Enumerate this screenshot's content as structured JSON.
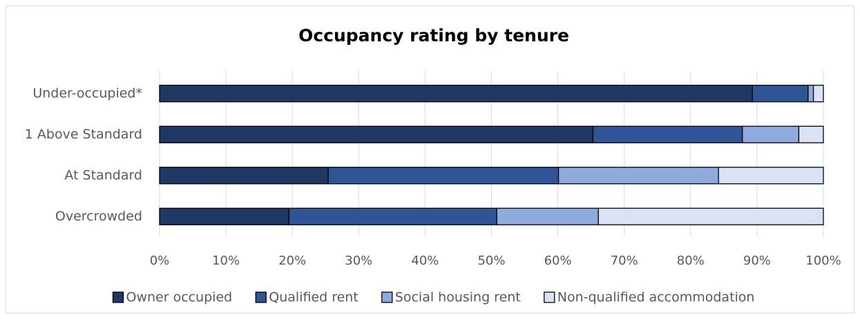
{
  "chart_data": {
    "type": "bar",
    "orientation": "horizontal",
    "stacked": true,
    "title": "Occupancy rating by tenure",
    "categories": [
      "Under-occupied*",
      "1 Above Standard",
      "At Standard",
      "Overcrowded"
    ],
    "series": [
      {
        "name": "Owner occupied",
        "color": "#1f3864",
        "values": [
          89.3,
          65.3,
          25.4,
          19.5
        ]
      },
      {
        "name": "Qualified rent",
        "color": "#2f5597",
        "values": [
          8.4,
          22.5,
          34.7,
          31.3
        ]
      },
      {
        "name": "Social housing rent",
        "color": "#8faadc",
        "values": [
          0.8,
          8.5,
          24.1,
          15.3
        ]
      },
      {
        "name": "Non-qualified accommodation",
        "color": "#dae3f3",
        "values": [
          1.5,
          3.7,
          15.8,
          33.9
        ]
      }
    ],
    "xlim": [
      0,
      100
    ],
    "xticks": [
      {
        "value": 0,
        "label": "0%"
      },
      {
        "value": 10,
        "label": "10%"
      },
      {
        "value": 20,
        "label": "20%"
      },
      {
        "value": 30,
        "label": "30%"
      },
      {
        "value": 40,
        "label": "40%"
      },
      {
        "value": 50,
        "label": "50%"
      },
      {
        "value": 60,
        "label": "60%"
      },
      {
        "value": 70,
        "label": "70%"
      },
      {
        "value": 80,
        "label": "80%"
      },
      {
        "value": 90,
        "label": "90%"
      },
      {
        "value": 100,
        "label": "100%"
      }
    ],
    "grid": true,
    "legend": "bottom"
  }
}
